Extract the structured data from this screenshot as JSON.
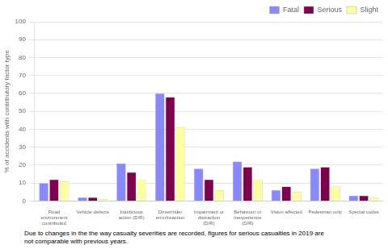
{
  "chart_data": {
    "type": "bar",
    "categories": [
      "Road\nenvironment\ncontributed",
      "Vehicle defects",
      "Injudicious\naction (D/R)",
      "Driver/rider\nerror/reaction",
      "Impairment or\ndistraction\n(D/R)",
      "Behaviour or\ninexperience\n(D/R)",
      "Vision affected",
      "Pedestrian only",
      "Special codes"
    ],
    "series": [
      {
        "name": "Fatal",
        "color": "#8888ff",
        "values": [
          10,
          2,
          21,
          60,
          18,
          22,
          6,
          18,
          3
        ]
      },
      {
        "name": "Serious",
        "color": "#800050",
        "values": [
          12,
          2,
          16,
          58,
          12,
          19,
          8,
          19,
          3
        ]
      },
      {
        "name": "Slight",
        "color": "#ffffa0",
        "values": [
          11,
          1,
          12,
          41,
          6,
          12,
          5,
          8,
          2
        ]
      }
    ],
    "ylabel": "% of accidents with contributory factor type",
    "ylim": [
      0,
      100
    ],
    "yticks": [
      0,
      10,
      20,
      30,
      40,
      50,
      60,
      70,
      80,
      90,
      100
    ],
    "grid": true,
    "legend": "upper right",
    "annotations": [
      "Due to changes in the the way casualty severities are recorded, figures for serious casualties in 2019 are\nnot comparable with previous years."
    ]
  }
}
